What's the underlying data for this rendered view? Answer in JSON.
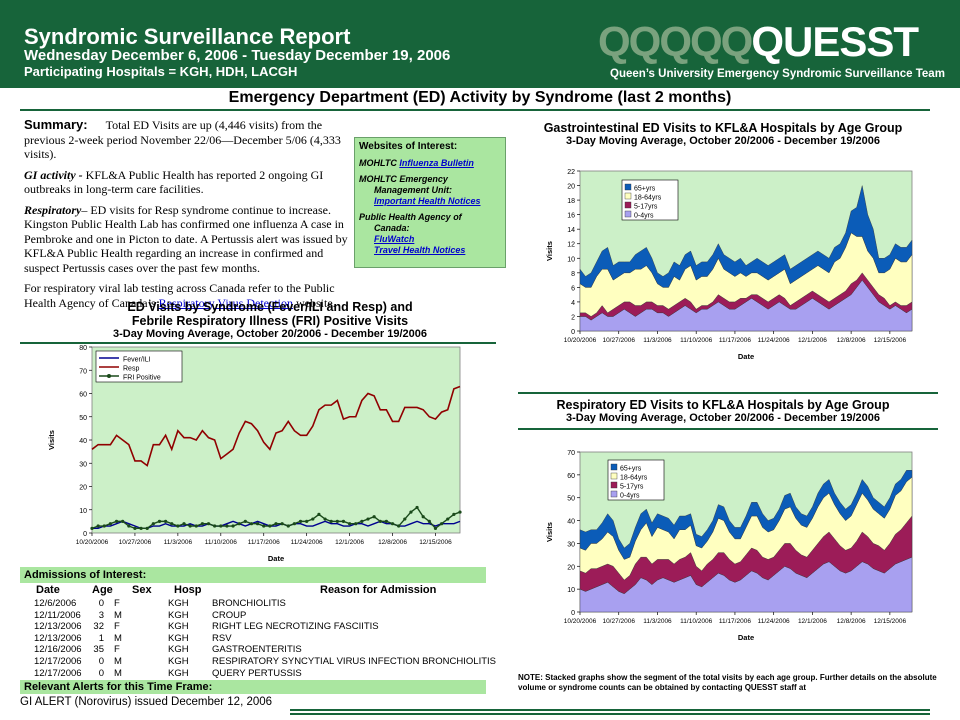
{
  "header": {
    "title": "Syndromic Surveillance Report",
    "dates": "Wednesday December 6, 2006 - Tuesday December 19, 2006",
    "hospitals": "Participating Hospitals = KGH, HDH, LACGH",
    "logo_faded": "QQQQQ",
    "logo_main": "QUESST",
    "team": "Queen’s University Emergency Syndromic Surveillance Team"
  },
  "section_title": "Emergency Department (ED) Activity by Syndrome (last 2 months)",
  "summary": {
    "label": "Summary:",
    "p1": "Total ED Visits are up (4,446 visits) from the previous 2-week period November 22/06—December 5/06 (4,333 visits).",
    "gi_label": "GI activity -",
    "gi_text": "KFL&A Public Health has reported 2 ongoing GI outbreaks in long-term care facilities.",
    "resp_label": "Respiratory",
    "resp_text": "– ED visits for Resp syndrome continue to increase. Kingston Public Health Lab has confirmed one influenza A case in Pembroke and one in Picton to date.  A Pertussis alert was issued by KFL&A Public Health regarding an increase in confirmed and suspect Pertussis cases over the past few months.",
    "viral_pre": "For respiratory viral lab testing across Canada refer to the Public Health Agency of Canada’s",
    "viral_link": "Respiratory Virus Detection",
    "viral_post": "website."
  },
  "websites": {
    "heading": "Websites of Interest:",
    "mohltc": "MOHLTC",
    "mohltc_link": "Influenza Bulletin",
    "emu_line1": "MOHLTC Emergency",
    "emu_line2": "Management Unit:",
    "emu_link": "Important Health Notices",
    "phac_line1": "Public Health Agency of",
    "phac_line2": "Canada:",
    "phac_link1": "FluWatch",
    "phac_link2": "Travel Health Notices"
  },
  "colors": {
    "header_green": "#17643a",
    "panel_green": "#aae6a0",
    "plot_bg": "#ccf0c8",
    "age_65": "#0b5cb8",
    "age_18_64": "#ffffc0",
    "age_5_17": "#9c1c58",
    "age_0_4": "#a8a0f0",
    "fever": "#000090",
    "resp": "#900000",
    "fri": "#1a4a1a"
  },
  "chart_data": [
    {
      "id": "syndrome",
      "type": "line",
      "title": "ED Visits by Syndrome (Fever/ILI and Resp) and Febrile Respiratory Illness (FRI) Positive Visits",
      "title_line1": "ED Visits by Syndrome (Fever/ILI and Resp) and",
      "title_line2": "Febrile Respiratory Illness (FRI) Positive Visits",
      "subtitle": "3-Day Moving Average, October 20/2006 - December 19/2006",
      "xlabel": "Date",
      "ylabel": "Visits",
      "ylim": [
        0,
        80
      ],
      "yticks": [
        0,
        10,
        20,
        30,
        40,
        50,
        60,
        70,
        80
      ],
      "xticks": [
        "10/20/2006",
        "10/27/2006",
        "11/3/2006",
        "11/10/2006",
        "11/17/2006",
        "11/24/2006",
        "12/1/2006",
        "12/8/2006",
        "12/15/2006"
      ],
      "legend": "top-left",
      "series": [
        {
          "name": "Fever/ILI",
          "values": [
            2,
            2,
            3,
            3,
            4,
            5,
            4,
            3,
            2,
            2,
            3,
            3,
            4,
            3,
            3,
            3,
            4,
            3,
            3,
            4,
            3,
            3,
            4,
            5,
            4,
            3,
            4,
            5,
            4,
            3,
            3,
            4,
            3,
            4,
            4,
            3,
            3,
            4,
            5,
            4,
            4,
            3,
            3,
            4,
            4,
            3,
            4,
            5,
            4,
            4,
            3,
            3,
            4,
            5,
            4,
            4,
            3,
            4,
            4,
            4,
            5
          ]
        },
        {
          "name": "Resp",
          "values": [
            36,
            38,
            38,
            38,
            42,
            40,
            38,
            31,
            31,
            29,
            38,
            38,
            42,
            36,
            44,
            41,
            41,
            40,
            44,
            41,
            40,
            32,
            34,
            36,
            43,
            48,
            47,
            44,
            39,
            36,
            43,
            44,
            48,
            44,
            42,
            42,
            46,
            53,
            55,
            55,
            57,
            49,
            50,
            50,
            57,
            60,
            59,
            53,
            53,
            48,
            48,
            54,
            54,
            54,
            53,
            50,
            49,
            52,
            53,
            62,
            63
          ]
        },
        {
          "name": "FRI Positive",
          "values": [
            2,
            3,
            3,
            4,
            5,
            5,
            3,
            2,
            2,
            2,
            4,
            5,
            5,
            4,
            3,
            4,
            3,
            3,
            4,
            4,
            3,
            3,
            3,
            3,
            4,
            5,
            4,
            4,
            3,
            3,
            4,
            4,
            3,
            4,
            5,
            5,
            6,
            8,
            6,
            5,
            5,
            5,
            4,
            4,
            5,
            6,
            7,
            5,
            5,
            4,
            3,
            6,
            9,
            11,
            7,
            5,
            2,
            4,
            6,
            8,
            9
          ]
        }
      ]
    },
    {
      "id": "gi",
      "type": "area",
      "title": "Gastrointestinal ED Visits to KFL&A Hospitals by Age Group",
      "subtitle": "3-Day Moving Average, October 20/2006 - December 19/2006",
      "xlabel": "Date",
      "ylabel": "Visits",
      "ylim": [
        0,
        22
      ],
      "yticks": [
        0,
        2,
        4,
        6,
        8,
        10,
        12,
        14,
        16,
        18,
        20,
        22
      ],
      "xticks": [
        "10/20/2006",
        "10/27/2006",
        "11/3/2006",
        "11/10/2006",
        "11/17/2006",
        "11/24/2006",
        "12/1/2006",
        "12/8/2006",
        "12/15/2006"
      ],
      "legend": "top-left",
      "stacked": true,
      "series": [
        {
          "name": "0-4yrs",
          "values": [
            2,
            2,
            1.5,
            2,
            2.5,
            2,
            2,
            2.5,
            3,
            2.5,
            2,
            2.5,
            3,
            3,
            2.5,
            2.5,
            2,
            2.5,
            3,
            3.5,
            3,
            2.5,
            3,
            3,
            3.5,
            4,
            3.5,
            3,
            3,
            3.5,
            4,
            4.5,
            4,
            3.5,
            3,
            3.5,
            4,
            3.5,
            3,
            3,
            3.5,
            4,
            4.5,
            4,
            3.5,
            3,
            3.5,
            4,
            4.5,
            5,
            6,
            7,
            6,
            5,
            4,
            3.5,
            3,
            3.5,
            3,
            2.5,
            3
          ]
        },
        {
          "name": "5-17yrs",
          "values": [
            0.5,
            0.5,
            0.5,
            0.5,
            1,
            0.5,
            1,
            1,
            1,
            1.5,
            1.5,
            1,
            1,
            1,
            1,
            1,
            1,
            1,
            1,
            1,
            1,
            0.5,
            0.5,
            0.5,
            0.5,
            1,
            1,
            1,
            1,
            1,
            0.5,
            0.5,
            1,
            1,
            1,
            1,
            1,
            1,
            0.5,
            1,
            1,
            1,
            1,
            1,
            1,
            1,
            1,
            1,
            1,
            1.5,
            1,
            1,
            1,
            1,
            1,
            1,
            0.5,
            0.5,
            0.5,
            1,
            1
          ]
        },
        {
          "name": "18-64yrs",
          "values": [
            4,
            3.5,
            4,
            5,
            5,
            6,
            4,
            4,
            4,
            4,
            5,
            5,
            5,
            4,
            3,
            2.5,
            3,
            4,
            3,
            4,
            5,
            4,
            4,
            4,
            4.5,
            5,
            4,
            4,
            3.5,
            3.5,
            3,
            3,
            3,
            3,
            3,
            3,
            3,
            4,
            3,
            3,
            3,
            3,
            3,
            4,
            4,
            4,
            5,
            5,
            6,
            7,
            6,
            5,
            4,
            4,
            3,
            3.5,
            5,
            6,
            6,
            6,
            6.5
          ]
        },
        {
          "name": "65+yrs",
          "values": [
            2,
            1.5,
            2,
            2,
            2.5,
            3,
            2,
            2,
            1.5,
            1.5,
            2,
            2.5,
            2.5,
            2,
            1.5,
            1.5,
            2,
            2,
            2,
            2,
            2,
            2,
            2,
            2,
            2,
            2,
            2,
            2,
            2,
            2,
            1.5,
            1.5,
            2,
            2,
            2,
            2,
            2,
            2,
            2,
            2,
            2,
            2,
            2,
            2,
            2,
            2,
            2,
            2,
            2,
            3,
            4,
            7,
            5,
            4,
            2,
            2,
            2,
            2,
            2,
            2,
            2
          ]
        }
      ]
    },
    {
      "id": "resp",
      "type": "area",
      "title": "Respiratory ED Visits to KFL&A Hospitals by Age Group",
      "subtitle": "3-Day Moving Average, October 20/2006 - December 19/2006",
      "xlabel": "Date",
      "ylabel": "Visits",
      "ylim": [
        0,
        70
      ],
      "yticks": [
        0,
        10,
        20,
        30,
        40,
        50,
        60,
        70
      ],
      "xticks": [
        "10/20/2006",
        "10/27/2006",
        "11/3/2006",
        "11/10/2006",
        "11/17/2006",
        "11/24/2006",
        "12/1/2006",
        "12/8/2006",
        "12/15/2006"
      ],
      "legend": "top-left",
      "stacked": true,
      "series": [
        {
          "name": "0-4yrs",
          "values": [
            10,
            9,
            10,
            11,
            12,
            13,
            11,
            9,
            8,
            10,
            12,
            15,
            14,
            12,
            14,
            15,
            14,
            13,
            14,
            15,
            16,
            12,
            11,
            13,
            15,
            17,
            16,
            14,
            13,
            14,
            16,
            18,
            17,
            15,
            14,
            16,
            18,
            20,
            19,
            17,
            16,
            15,
            17,
            19,
            21,
            22,
            20,
            18,
            17,
            18,
            20,
            22,
            21,
            19,
            18,
            17,
            19,
            21,
            22,
            23,
            24
          ]
        },
        {
          "name": "5-17yrs",
          "values": [
            8,
            8,
            9,
            8,
            8,
            8,
            9,
            8,
            6,
            6,
            9,
            9,
            10,
            9,
            9,
            8,
            9,
            8,
            9,
            9,
            10,
            8,
            7,
            8,
            8,
            9,
            10,
            9,
            8,
            8,
            9,
            10,
            10,
            9,
            9,
            8,
            9,
            10,
            11,
            10,
            9,
            9,
            10,
            11,
            12,
            13,
            12,
            11,
            10,
            10,
            11,
            13,
            12,
            11,
            11,
            10,
            11,
            13,
            14,
            16,
            18
          ]
        },
        {
          "name": "18-64yrs",
          "values": [
            10,
            10,
            11,
            11,
            12,
            14,
            13,
            10,
            9,
            8,
            10,
            12,
            15,
            12,
            14,
            13,
            12,
            11,
            13,
            12,
            12,
            9,
            10,
            10,
            12,
            15,
            14,
            12,
            11,
            10,
            12,
            14,
            15,
            13,
            12,
            12,
            13,
            15,
            16,
            14,
            13,
            13,
            14,
            16,
            17,
            17,
            15,
            14,
            13,
            14,
            16,
            17,
            16,
            15,
            14,
            14,
            15,
            17,
            17,
            18,
            17
          ]
        },
        {
          "name": "65+yrs",
          "values": [
            8,
            8,
            6,
            6,
            7,
            8,
            7,
            5,
            5,
            6,
            6,
            7,
            6,
            6,
            6,
            6,
            6,
            6,
            6,
            6,
            5,
            5,
            5,
            5,
            5,
            6,
            6,
            5,
            5,
            5,
            5,
            6,
            6,
            6,
            5,
            5,
            5,
            6,
            6,
            5,
            5,
            5,
            5,
            6,
            6,
            6,
            5,
            5,
            5,
            5,
            5,
            6,
            6,
            5,
            5,
            5,
            5,
            5,
            5,
            5,
            3
          ]
        }
      ]
    }
  ],
  "admissions": {
    "label": "Admissions of Interest:",
    "headers": {
      "date": "Date",
      "age": "Age",
      "sex": "Sex",
      "hosp": "Hosp",
      "reason": "Reason for Admission"
    },
    "rows": [
      {
        "date": "12/6/2006",
        "age": "0",
        "sex": "F",
        "hosp": "KGH",
        "reason": "BRONCHIOLITIS"
      },
      {
        "date": "12/11/2006",
        "age": "3",
        "sex": "M",
        "hosp": "KGH",
        "reason": "CROUP"
      },
      {
        "date": "12/13/2006",
        "age": "32",
        "sex": "F",
        "hosp": "KGH",
        "reason": "RIGHT LEG NECROTIZING FASCIITIS"
      },
      {
        "date": "12/13/2006",
        "age": "1",
        "sex": "M",
        "hosp": "KGH",
        "reason": "RSV"
      },
      {
        "date": "12/16/2006",
        "age": "35",
        "sex": "F",
        "hosp": "KGH",
        "reason": "GASTROENTERITIS"
      },
      {
        "date": "12/17/2006",
        "age": "0",
        "sex": "M",
        "hosp": "KGH",
        "reason": "RESPIRATORY SYNCYTIAL VIRUS INFECTION BRONCHIOLITIS"
      },
      {
        "date": "12/17/2006",
        "age": "0",
        "sex": "M",
        "hosp": "KGH",
        "reason": "QUERY PERTUSSIS"
      }
    ]
  },
  "alerts": {
    "label": "Relevant Alerts for this Time Frame:",
    "text": "GI ALERT (Norovirus) issued December 12, 2006"
  },
  "note": "NOTE: Stacked graphs show the segment of the total visits by each age group. Further details on the absolute volume or syndrome counts can be obtained by contacting QUESST staff at"
}
